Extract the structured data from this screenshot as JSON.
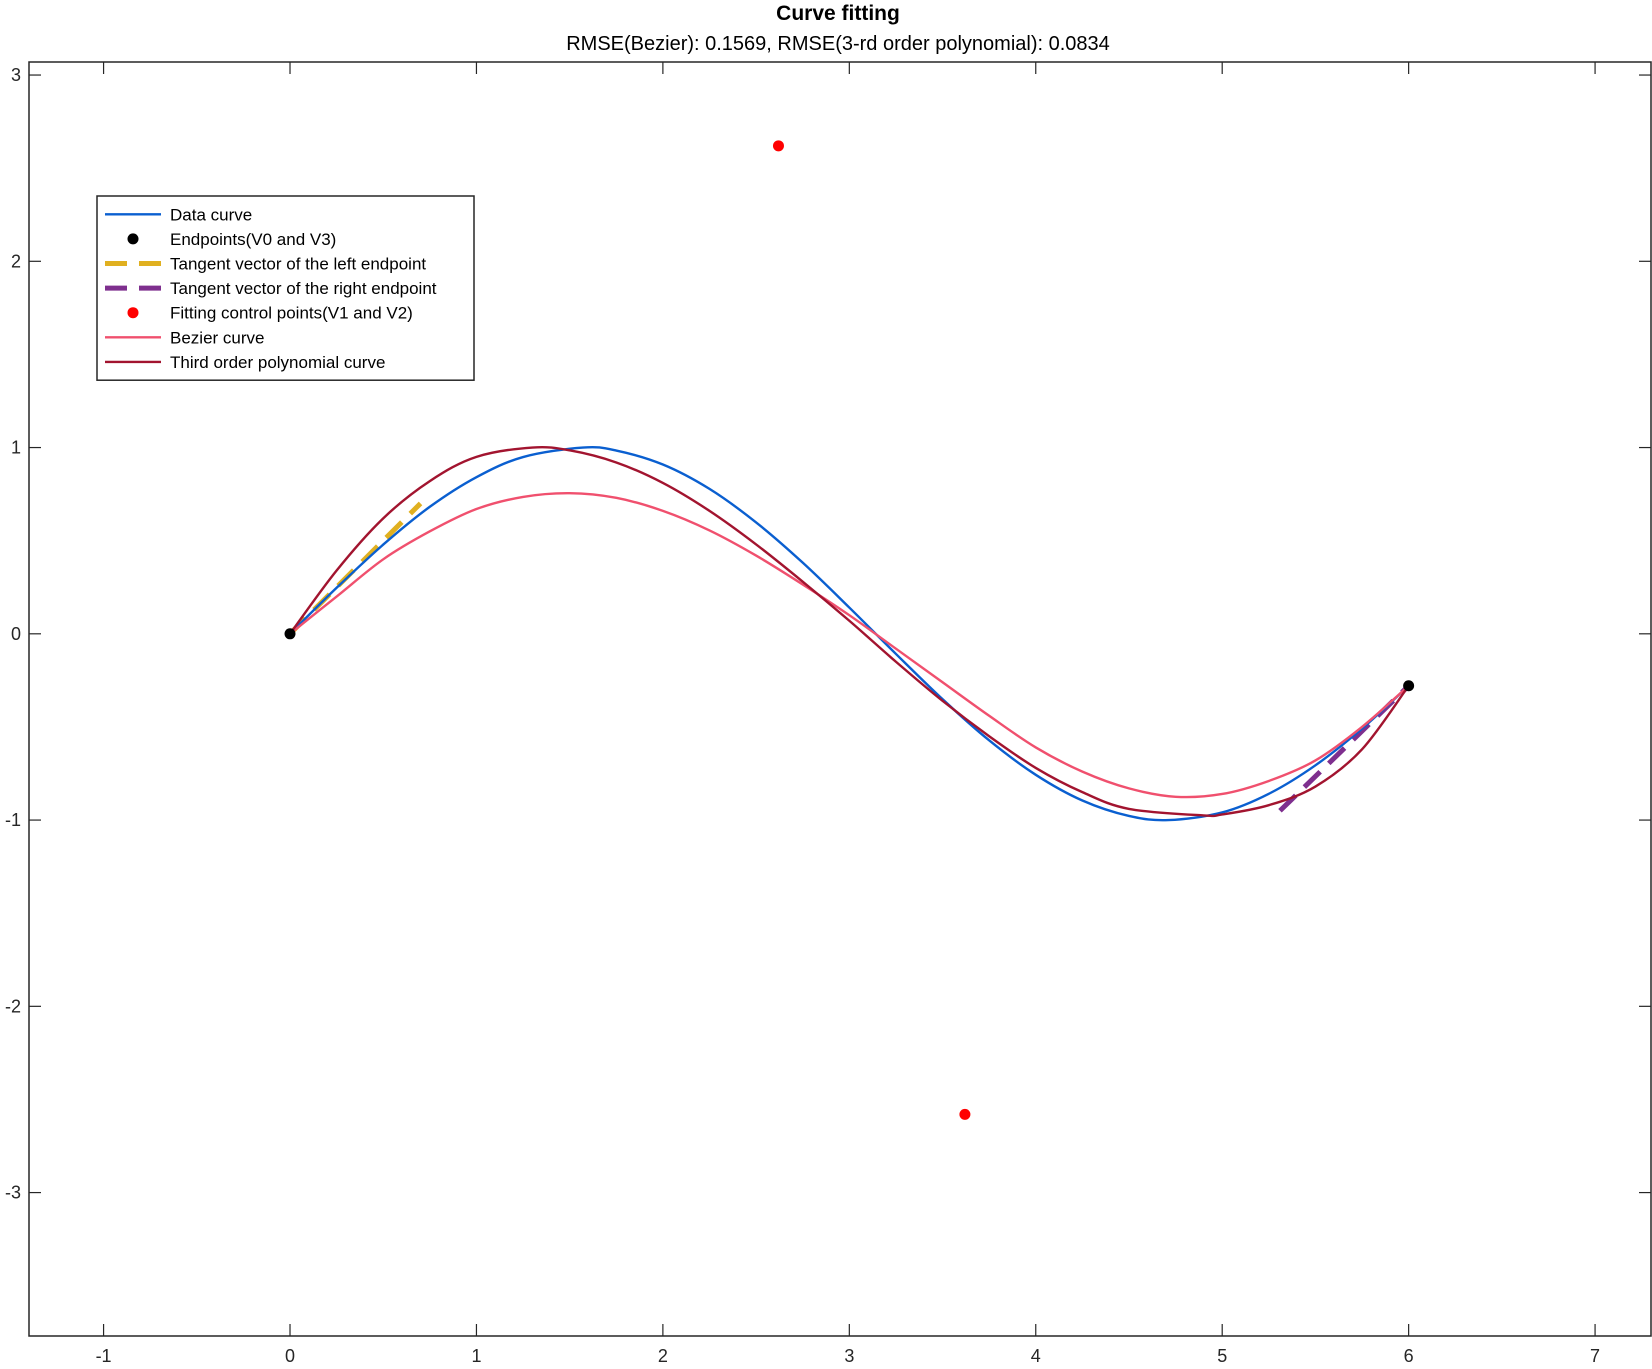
{
  "chart_data": {
    "type": "line",
    "title": "Curve fitting",
    "subtitle": "RMSE(Bezier): 0.1569, RMSE(3-rd order polynomial): 0.0834",
    "xlabel": "",
    "ylabel": "",
    "xlim": [
      -1.4,
      7.3
    ],
    "ylim": [
      -3.77,
      3.07
    ],
    "xticks": [
      -1,
      0,
      1,
      2,
      3,
      4,
      5,
      6,
      7
    ],
    "yticks": [
      -3,
      -2,
      -1,
      0,
      1,
      2,
      3
    ],
    "grid": false,
    "legend_position": "top-left",
    "series": [
      {
        "name": "Data curve",
        "kind": "line",
        "color": "#0a5fd0",
        "x": [
          0,
          0.25,
          0.5,
          0.75,
          1.0,
          1.25,
          1.5708,
          1.75,
          2.0,
          2.25,
          2.5,
          2.75,
          3.0,
          3.25,
          3.5,
          3.75,
          4.0,
          4.25,
          4.5,
          4.7124,
          5.0,
          5.25,
          5.5,
          5.75,
          6.0
        ],
        "y": [
          0,
          0.247,
          0.479,
          0.682,
          0.841,
          0.949,
          1.0,
          0.984,
          0.909,
          0.778,
          0.598,
          0.382,
          0.141,
          -0.108,
          -0.351,
          -0.572,
          -0.757,
          -0.895,
          -0.978,
          -1.0,
          -0.959,
          -0.859,
          -0.706,
          -0.509,
          -0.279
        ]
      },
      {
        "name": "Endpoints(V0 and V3)",
        "kind": "scatter",
        "color": "#000000",
        "x": [
          0,
          6
        ],
        "y": [
          0,
          -0.279
        ]
      },
      {
        "name": "Tangent vector of the left endpoint",
        "kind": "dashed",
        "color": "#e0b020",
        "x": [
          0,
          0.7
        ],
        "y": [
          0,
          0.7
        ]
      },
      {
        "name": "Tangent vector of the right endpoint",
        "kind": "dashed",
        "color": "#7e2f8e",
        "x": [
          5.31,
          6
        ],
        "y": [
          -0.95,
          -0.279
        ]
      },
      {
        "name": "Fitting control points(V1 and V2)",
        "kind": "scatter",
        "color": "#ff0000",
        "x": [
          2.62,
          3.62
        ],
        "y": [
          2.62,
          -2.58
        ]
      },
      {
        "name": "Bezier curve",
        "kind": "line",
        "color": "#f0506e",
        "x": [
          0,
          0.25,
          0.5,
          0.75,
          1.0,
          1.25,
          1.5,
          1.75,
          2.0,
          2.25,
          2.5,
          2.75,
          3.0,
          3.25,
          3.5,
          3.75,
          4.0,
          4.25,
          4.5,
          4.75,
          5.0,
          5.25,
          5.5,
          5.75,
          6.0
        ],
        "y": [
          0,
          0.2,
          0.4,
          0.55,
          0.67,
          0.735,
          0.755,
          0.73,
          0.66,
          0.555,
          0.42,
          0.265,
          0.1,
          -0.08,
          -0.26,
          -0.44,
          -0.61,
          -0.74,
          -0.83,
          -0.875,
          -0.86,
          -0.79,
          -0.68,
          -0.5,
          -0.279
        ]
      },
      {
        "name": "Third order polynomial curve",
        "kind": "line",
        "color": "#a2142f",
        "x": [
          0,
          0.25,
          0.5,
          0.75,
          1.0,
          1.3,
          1.5,
          1.75,
          2.0,
          2.25,
          2.5,
          2.75,
          3.0,
          3.25,
          3.5,
          3.75,
          4.0,
          4.25,
          4.5,
          4.9,
          5.0,
          5.25,
          5.5,
          5.75,
          6.0
        ],
        "y": [
          0,
          0.34,
          0.62,
          0.82,
          0.95,
          1.0,
          0.985,
          0.92,
          0.81,
          0.66,
          0.48,
          0.28,
          0.07,
          -0.15,
          -0.36,
          -0.55,
          -0.72,
          -0.85,
          -0.94,
          -0.975,
          -0.97,
          -0.92,
          -0.82,
          -0.62,
          -0.279
        ]
      }
    ]
  }
}
